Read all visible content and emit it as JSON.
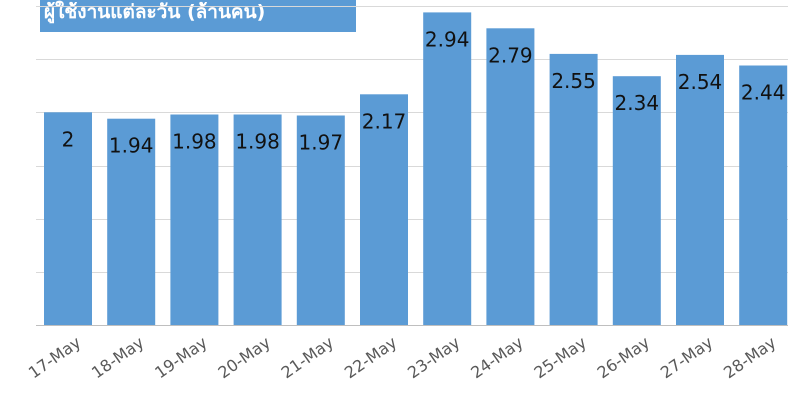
{
  "chart_data": {
    "type": "bar",
    "title": "ผู้ใช้งานแต่ละวัน (ล้านคน)",
    "categories": [
      "17-May",
      "18-May",
      "19-May",
      "20-May",
      "21-May",
      "22-May",
      "23-May",
      "24-May",
      "25-May",
      "26-May",
      "27-May",
      "28-May"
    ],
    "values": [
      2,
      1.94,
      1.98,
      1.98,
      1.97,
      2.17,
      2.94,
      2.79,
      2.55,
      2.34,
      2.54,
      2.44
    ],
    "ylim": [
      0,
      3
    ],
    "grid": true,
    "legend": "none",
    "bar_color": "#5b9bd5"
  }
}
